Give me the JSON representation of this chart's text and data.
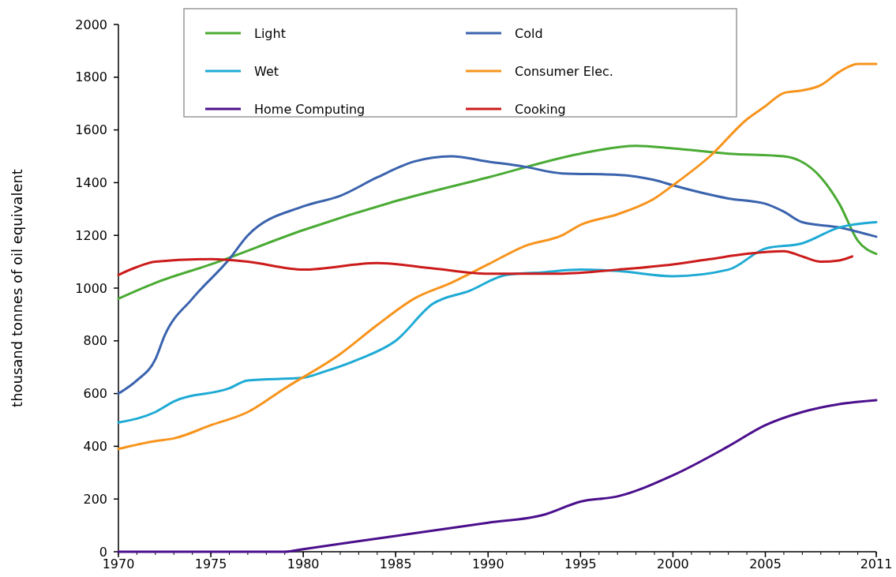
{
  "chart_data": {
    "type": "line",
    "ylabel": "thousand tonnes of oil equivalent",
    "xlim": [
      1970,
      2011
    ],
    "xticks": [
      1970,
      1975,
      1980,
      1985,
      1990,
      1995,
      2000,
      2005,
      2011
    ],
    "ylim": [
      0,
      2000
    ],
    "yticks": [
      0,
      200,
      400,
      600,
      800,
      1000,
      1200,
      1400,
      1600,
      1800,
      2000
    ],
    "legend": "top",
    "grid": false,
    "marker": "none",
    "line_style": "solid",
    "series": [
      {
        "name": "Light",
        "color": "#4aab34",
        "x": [
          1970,
          1972,
          1975,
          1980,
          1985,
          1990,
          1995,
          1998,
          2000,
          2003,
          2006,
          2008,
          2009,
          2010,
          2011
        ],
        "values": [
          960,
          1020,
          1090,
          1220,
          1330,
          1420,
          1510,
          1540,
          1530,
          1510,
          1500,
          1420,
          1320,
          1180,
          1130
        ]
      },
      {
        "name": "Cold",
        "color": "#3a63ad",
        "x": [
          1970,
          1971,
          1972,
          1972.5,
          1974,
          1976,
          1977,
          1980,
          1982,
          1984,
          1986,
          1988,
          1990,
          1992,
          1994,
          1997,
          1999,
          2000,
          2003,
          2005,
          2006,
          2007,
          2009,
          2011
        ],
        "values": [
          600,
          650,
          730,
          820,
          960,
          1110,
          1200,
          1310,
          1350,
          1420,
          1480,
          1500,
          1480,
          1460,
          1435,
          1430,
          1410,
          1390,
          1340,
          1320,
          1290,
          1250,
          1230,
          1195
        ]
      },
      {
        "name": "Wet",
        "color": "#1eaad4",
        "x": [
          1970,
          1972,
          1973,
          1976,
          1977,
          1980,
          1981,
          1983,
          1985,
          1987,
          1989,
          1991,
          1993,
          1995,
          1997,
          2000,
          2003,
          2005,
          2007,
          2009,
          2011
        ],
        "values": [
          490,
          530,
          570,
          620,
          650,
          660,
          680,
          730,
          800,
          940,
          990,
          1050,
          1060,
          1070,
          1065,
          1045,
          1070,
          1150,
          1170,
          1230,
          1250
        ]
      },
      {
        "name": "Consumer Elec.",
        "color": "#f7941d",
        "x": [
          1970,
          1972,
          1973,
          1975,
          1977,
          1979,
          1982,
          1984,
          1986,
          1988,
          1990,
          1992,
          1994,
          1995,
          1997,
          1999,
          2000,
          2002,
          2004,
          2005,
          2006,
          2007,
          2008,
          2009,
          2010,
          2011
        ],
        "values": [
          390,
          420,
          430,
          480,
          530,
          620,
          750,
          860,
          960,
          1020,
          1090,
          1160,
          1200,
          1240,
          1280,
          1340,
          1390,
          1500,
          1640,
          1690,
          1740,
          1750,
          1770,
          1820,
          1850,
          1850
        ]
      },
      {
        "name": "Home Computing",
        "color": "#4b0f8c",
        "x": [
          1970,
          1979,
          1980,
          1985,
          1990,
          1993,
          1995,
          1997,
          2000,
          2003,
          2005,
          2007,
          2009,
          2011
        ],
        "values": [
          0,
          0,
          10,
          60,
          110,
          140,
          190,
          210,
          290,
          400,
          480,
          530,
          560,
          575
        ]
      },
      {
        "name": "Cooking",
        "color": "#cc1b1b",
        "x": [
          1970,
          1971,
          1972,
          1975,
          1977,
          1980,
          1984,
          1987,
          1990,
          1994,
          1997,
          2000,
          2002,
          2004,
          2006,
          2007,
          2008,
          2009,
          2009.7
        ],
        "values": [
          1050,
          1080,
          1100,
          1110,
          1100,
          1070,
          1095,
          1075,
          1055,
          1055,
          1070,
          1090,
          1110,
          1130,
          1140,
          1120,
          1100,
          1105,
          1120
        ]
      }
    ]
  }
}
